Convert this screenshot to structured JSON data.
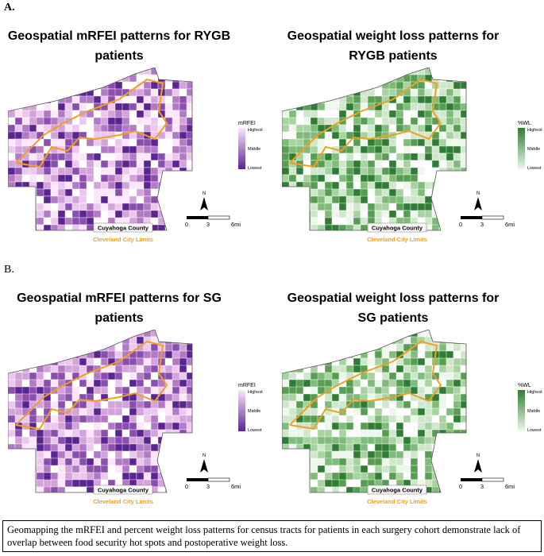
{
  "figure": {
    "panels": [
      {
        "label": "A.",
        "maps": [
          {
            "title": "Geospatial mRFEI patterns for RYGB patients",
            "legend": {
              "title": "mRFEI",
              "labels": [
                "Highest",
                "Middle",
                "Lowest"
              ]
            }
          },
          {
            "title": "Geospatial weight loss patterns for RYGB patients",
            "legend": {
              "title": "%WL",
              "labels": [
                "Highest",
                "Middle",
                "Lowest"
              ]
            }
          }
        ]
      },
      {
        "label": "B.",
        "maps": [
          {
            "title": "Geospatial mRFEI patterns for SG patients",
            "legend": {
              "title": "mRFEI",
              "labels": [
                "Highest",
                "Middle",
                "Lowest"
              ]
            }
          },
          {
            "title": "Geospatial weight loss patterns for SG patients",
            "legend": {
              "title": "%WL",
              "labels": [
                "Highest",
                "Middle",
                "Lowest"
              ]
            }
          }
        ]
      }
    ],
    "map_elements": {
      "north": "N",
      "scale": [
        "0",
        "3",
        "6mi"
      ],
      "county": "Cuyahoga County",
      "city": "Cleveland City Limits"
    },
    "caption": "Geomapping the mRFEI and percent weight loss patterns for census tracts for patients in each surgery cohort demonstrate lack of overlap between food security hot spots and postoperative weight loss."
  }
}
